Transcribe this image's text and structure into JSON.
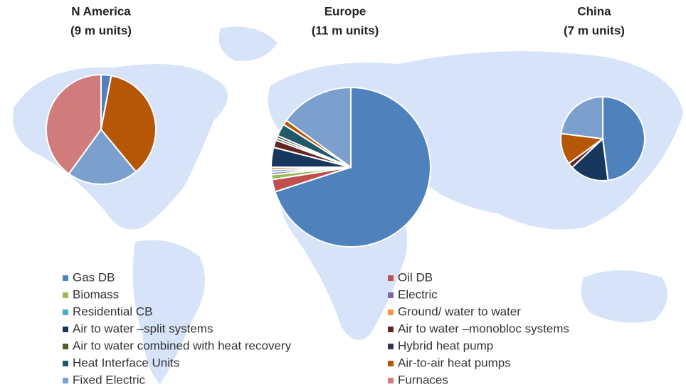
{
  "chart_data": [
    {
      "type": "pie",
      "title": "N America",
      "subtitle": "(9 m units)",
      "categories": [
        "Gas DB",
        "Oil DB",
        "Biomass",
        "Electric",
        "Residential CB",
        "Ground/ water to water",
        "Air to water –split systems",
        "Air to water –monobloc systems",
        "Air to water combined with heat recovery",
        "Hybrid heat pump",
        "Heat Interface Units",
        "Air-to-air heat pumps",
        "Fixed Electric",
        "Furnaces"
      ],
      "colors": [
        "#4f81bd",
        "#c0504d",
        "#9bbb59",
        "#8064a2",
        "#4bacc6",
        "#f79646",
        "#17375e",
        "#632523",
        "#4f6228",
        "#3f3151",
        "#215968",
        "#b65708",
        "#7ba0cd",
        "#d07c7c"
      ],
      "values": [
        3,
        0,
        0,
        0,
        0,
        0,
        0,
        0,
        0,
        0,
        0,
        36,
        21,
        40
      ]
    },
    {
      "type": "pie",
      "title": "Europe",
      "subtitle": "(11 m units)",
      "categories": [
        "Gas DB",
        "Oil DB",
        "Biomass",
        "Electric",
        "Residential CB",
        "Ground/ water to water",
        "Air to water –split systems",
        "Air to water –monobloc systems",
        "Air to water combined with heat recovery",
        "Hybrid heat pump",
        "Heat Interface Units",
        "Air-to-air heat pumps",
        "Fixed Electric",
        "Furnaces"
      ],
      "colors": [
        "#4f81bd",
        "#c0504d",
        "#9bbb59",
        "#8064a2",
        "#4bacc6",
        "#f79646",
        "#17375e",
        "#632523",
        "#4f6228",
        "#3f3151",
        "#215968",
        "#b65708",
        "#7ba0cd",
        "#d07c7c"
      ],
      "values": [
        70,
        2.5,
        1,
        0.5,
        0.5,
        0.5,
        4,
        1.5,
        0.5,
        0.5,
        2.5,
        1,
        15,
        0
      ]
    },
    {
      "type": "pie",
      "title": "China",
      "subtitle": "(7 m units)",
      "categories": [
        "Gas DB",
        "Oil DB",
        "Biomass",
        "Electric",
        "Residential CB",
        "Ground/ water to water",
        "Air to water –split systems",
        "Air to water –monobloc systems",
        "Air to water combined with heat recovery",
        "Hybrid heat pump",
        "Heat Interface Units",
        "Air-to-air heat pumps",
        "Fixed Electric",
        "Furnaces"
      ],
      "colors": [
        "#4f81bd",
        "#c0504d",
        "#9bbb59",
        "#8064a2",
        "#4bacc6",
        "#f79646",
        "#17375e",
        "#632523",
        "#4f6228",
        "#3f3151",
        "#215968",
        "#b65708",
        "#7ba0cd",
        "#d07c7c"
      ],
      "values": [
        48,
        0,
        0,
        0,
        0,
        0,
        15,
        2,
        0,
        0,
        0,
        12,
        23,
        0
      ]
    }
  ]
}
